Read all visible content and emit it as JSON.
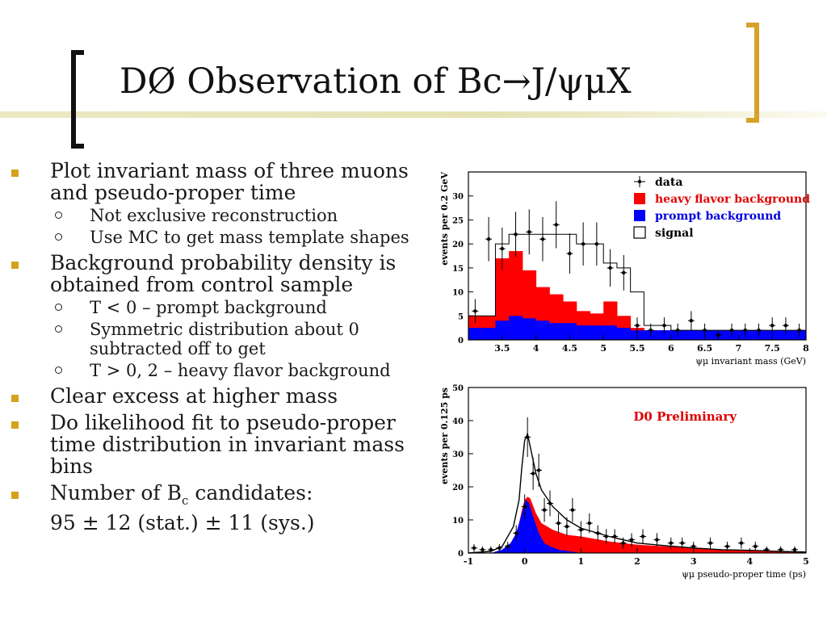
{
  "slide": {
    "title": "DØ Observation of Bc→J/ψμX",
    "bullets": [
      {
        "text": "Plot invariant mass of three muons and pseudo-proper time",
        "sub": [
          "Not exclusive reconstruction",
          "Use MC to get mass template shapes"
        ]
      },
      {
        "text": "Background probability density is obtained from control sample",
        "sub": [
          "T < 0 – prompt background",
          "Symmetric distribution about 0 subtracted off to get",
          "T > 0, 2 – heavy flavor background"
        ]
      },
      {
        "text": "Clear excess at higher mass",
        "sub": []
      },
      {
        "text": "Do likelihood fit to pseudo-proper time distribution in invariant mass bins",
        "sub": []
      },
      {
        "text_pre": " Number of B",
        "text_sub": "c",
        "text_post": " candidates:",
        "text_line2": "95 ± 12 (stat.) ± 11 (sys.)",
        "sub": []
      }
    ]
  },
  "chart_data": [
    {
      "type": "bar",
      "title": "",
      "xlabel": "ψμ invariant mass (GeV)",
      "ylabel": "events per 0.2 GeV",
      "xlim": [
        3.0,
        8.0
      ],
      "ylim": [
        0,
        35
      ],
      "xticks": [
        3.5,
        4,
        4.5,
        5,
        5.5,
        6,
        6.5,
        7,
        7.5,
        8
      ],
      "yticks": [
        0,
        5,
        10,
        15,
        20,
        25,
        30
      ],
      "legend": [
        {
          "label": "data",
          "color": "#000000",
          "marker": "cross"
        },
        {
          "label": "heavy flavor background",
          "color": "#ff0000"
        },
        {
          "label": "prompt background",
          "color": "#0000ff"
        },
        {
          "label": "signal",
          "color": "#000000",
          "marker": "open-box"
        }
      ],
      "legend_placement": "top-right",
      "bin_edges": [
        3.0,
        3.2,
        3.4,
        3.6,
        3.8,
        4.0,
        4.2,
        4.4,
        4.6,
        4.8,
        5.0,
        5.2,
        5.4,
        5.6,
        5.8,
        6.0,
        6.2,
        6.4,
        6.6,
        6.8,
        7.0,
        7.2,
        7.4,
        7.6,
        7.8,
        8.0
      ],
      "series": [
        {
          "name": "prompt background",
          "color": "#0000ff",
          "values": [
            2.5,
            2.5,
            4,
            5,
            4.5,
            4,
            3.5,
            3.5,
            3,
            3,
            3,
            2.5,
            2,
            2,
            2,
            2,
            2,
            2,
            2,
            2,
            2,
            2,
            2,
            2,
            2
          ]
        },
        {
          "name": "heavy flavor background",
          "color": "#ff0000",
          "values": [
            5,
            5,
            17,
            18.5,
            14.5,
            11,
            9.5,
            8,
            6,
            5.5,
            8,
            5,
            2.5,
            2,
            2,
            2,
            2,
            2,
            2,
            2,
            2,
            2,
            2,
            2,
            2
          ]
        },
        {
          "name": "signal",
          "color": "#000000",
          "values": [
            5,
            5,
            20,
            22,
            22,
            22,
            22,
            22,
            20,
            20,
            16,
            15,
            10,
            3,
            3,
            2,
            2,
            2,
            2,
            2,
            2,
            2,
            2,
            2,
            2
          ]
        }
      ],
      "data": {
        "x": [
          3.1,
          3.3,
          3.5,
          3.7,
          3.9,
          4.1,
          4.3,
          4.5,
          4.7,
          4.9,
          5.1,
          5.3,
          5.5,
          5.7,
          5.9,
          6.1,
          6.3,
          6.5,
          6.7,
          6.9,
          7.1,
          7.3,
          7.5,
          7.7,
          7.9
        ],
        "y": [
          6,
          21,
          19,
          22,
          22.5,
          21,
          24,
          18,
          20,
          20,
          15,
          14,
          3,
          2,
          3,
          2,
          4,
          2,
          1,
          2,
          2,
          2,
          3,
          3,
          2
        ],
        "err": [
          2.5,
          4.6,
          4.4,
          4.7,
          4.7,
          4.6,
          4.9,
          4.2,
          4.5,
          4.5,
          3.9,
          3.7,
          1.7,
          1.4,
          1.7,
          1.4,
          2,
          1.4,
          1,
          1.4,
          1.4,
          1.4,
          1.7,
          1.7,
          1.4
        ]
      }
    },
    {
      "type": "area",
      "title": "D0 Preliminary",
      "title_color": "#dd0000",
      "xlabel": "ψμ pseudo-proper time (ps)",
      "ylabel": "events per 0.125 ps",
      "xlim": [
        -1,
        5
      ],
      "ylim": [
        0,
        50
      ],
      "xticks": [
        -1,
        0,
        1,
        2,
        3,
        4,
        5
      ],
      "yticks": [
        0,
        10,
        20,
        30,
        40,
        50
      ],
      "series": [
        {
          "name": "prompt background",
          "color": "#0000ff",
          "x": [
            -0.6,
            -0.4,
            -0.25,
            -0.15,
            -0.1,
            -0.05,
            0,
            0.03,
            0.08,
            0.15,
            0.25,
            0.35,
            0.45,
            0.6,
            0.8,
            1.0
          ],
          "y": [
            0,
            1,
            3,
            6,
            9,
            12,
            15,
            16,
            15,
            11,
            6,
            3,
            2,
            1,
            0.5,
            0
          ]
        },
        {
          "name": "heavy flavor background",
          "color": "#ff0000",
          "x": [
            -0.6,
            -0.4,
            -0.25,
            -0.15,
            -0.1,
            -0.05,
            0,
            0.05,
            0.1,
            0.2,
            0.3,
            0.5,
            0.75,
            1.0,
            1.5,
            2.0,
            2.5,
            3.0,
            3.5,
            4.0,
            4.5,
            5.0
          ],
          "y": [
            0,
            1,
            3,
            6,
            9,
            13,
            16,
            17,
            16.5,
            12,
            9,
            7,
            5.5,
            5,
            3.5,
            2.5,
            2,
            1.5,
            1,
            0.8,
            0.5,
            0.3
          ]
        },
        {
          "name": "fit",
          "color": "#000000",
          "x": [
            -1,
            -0.6,
            -0.4,
            -0.2,
            -0.1,
            -0.05,
            0,
            0.05,
            0.1,
            0.2,
            0.3,
            0.5,
            0.75,
            1.0,
            1.5,
            2.0,
            2.5,
            3.0,
            3.5,
            4.0,
            4.5,
            5.0
          ],
          "y": [
            0,
            0.5,
            2,
            8,
            16,
            26,
            34,
            36,
            32,
            24,
            19,
            14,
            10,
            7.5,
            5,
            3,
            2.2,
            1.5,
            1,
            0.8,
            0.5,
            0.3
          ]
        }
      ],
      "data": {
        "x": [
          -0.9,
          -0.75,
          -0.6,
          -0.45,
          -0.3,
          -0.15,
          0,
          0.05,
          0.15,
          0.25,
          0.35,
          0.45,
          0.6,
          0.75,
          0.85,
          1.0,
          1.15,
          1.3,
          1.45,
          1.6,
          1.75,
          1.9,
          2.1,
          2.35,
          2.6,
          2.8,
          3.0,
          3.3,
          3.6,
          3.85,
          4.1,
          4.3,
          4.55,
          4.8
        ],
        "y": [
          1.5,
          1,
          1,
          1.5,
          2,
          6,
          14,
          35,
          24,
          25,
          13,
          15,
          9,
          8,
          13,
          7,
          9,
          6,
          5,
          5,
          3,
          4,
          5,
          4,
          3,
          3,
          2,
          3,
          2,
          3,
          2,
          1,
          1,
          1
        ],
        "err": [
          1.2,
          1,
          1,
          1.2,
          1.4,
          2.4,
          3.7,
          6,
          4.9,
          5,
          3.6,
          3.9,
          3,
          2.8,
          3.6,
          2.6,
          3,
          2.4,
          2.2,
          2.2,
          1.7,
          2,
          2.2,
          2,
          1.7,
          1.7,
          1.4,
          1.7,
          1.4,
          1.7,
          1.4,
          1,
          1,
          1
        ]
      }
    }
  ]
}
